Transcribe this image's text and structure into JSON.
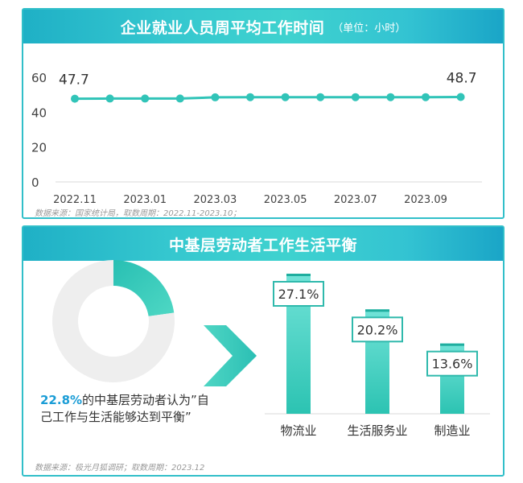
{
  "panel1": {
    "title": "企业就业人员周平均工作时间",
    "unit": "（单位：小时）",
    "source": "数据来源：国家统计局，取数周期：2022.11-2023.10；"
  },
  "panel2": {
    "title": "中基层劳动者工作生活平衡",
    "note_pct": "22.8%",
    "note_text": "的中基层劳动者认为”自己工作与生活能够达到平衡”",
    "source": "数据来源：极光月狐调研；取数周期：2023.12"
  },
  "colors": {
    "teal": "#31c4b8",
    "header": "#33c3d2",
    "accent_blue": "#1b9dd6",
    "donut_bg": "#eeeeee"
  },
  "chart_data": [
    {
      "type": "line",
      "x": [
        "2022.11",
        "2022.12",
        "2023.01",
        "2023.02",
        "2023.03",
        "2023.04",
        "2023.05",
        "2023.06",
        "2023.07",
        "2023.08",
        "2023.09",
        "2023.10"
      ],
      "x_tick_labels": [
        "2022.11",
        "2023.01",
        "2023.03",
        "2023.05",
        "2023.07",
        "2023.09"
      ],
      "values": [
        47.7,
        47.8,
        47.8,
        47.8,
        48.5,
        48.6,
        48.6,
        48.6,
        48.6,
        48.6,
        48.6,
        48.7
      ],
      "data_labels": {
        "first": "47.7",
        "last": "48.7"
      },
      "y_ticks": [
        0,
        20,
        40,
        60
      ],
      "ylim": [
        0,
        60
      ],
      "grid": false,
      "title": "企业就业人员周平均工作时间"
    },
    {
      "type": "pie",
      "variant": "donut",
      "values": [
        22.8,
        77.2
      ],
      "colors": [
        "#31c4b8",
        "#eeeeee"
      ]
    },
    {
      "type": "bar",
      "categories": [
        "物流业",
        "生活服务业",
        "制造业"
      ],
      "values": [
        27.1,
        20.2,
        13.6
      ],
      "labels": [
        "27.1%",
        "20.2%",
        "13.6%"
      ]
    }
  ]
}
